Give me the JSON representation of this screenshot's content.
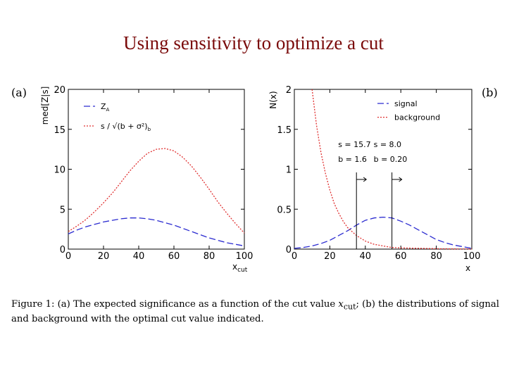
{
  "slide_title": "Using sensitivity to optimize a cut",
  "caption": {
    "prefix": "Figure 1: ",
    "part_a": "(a) The expected significance as a function of the cut value ",
    "var": "x",
    "var_sub": "cut",
    "part_b": "; (b) the distributions of signal and background with the optimal cut value indicated."
  },
  "chart_data": [
    {
      "panel": "(a)",
      "type": "line",
      "xlabel": "x",
      "xlabel_sub": "cut",
      "ylabel": "med[Z|s]",
      "xlim": [
        0,
        100
      ],
      "ylim": [
        0,
        20
      ],
      "xticks": [
        "0",
        "20",
        "40",
        "60",
        "80",
        "100"
      ],
      "yticks": [
        "0",
        "5",
        "10",
        "15",
        "20"
      ],
      "legend_position": "top-left",
      "legend": [
        "Z",
        "s / √(b + σ²)"
      ],
      "legend_subscripts": [
        "A",
        "b"
      ],
      "series": [
        {
          "color": "#2b2bd0",
          "style": "dashed",
          "x": [
            0,
            5,
            10,
            15,
            20,
            25,
            30,
            35,
            40,
            45,
            50,
            55,
            60,
            65,
            70,
            75,
            80,
            85,
            90,
            95,
            100
          ],
          "y": [
            1.9,
            2.4,
            2.8,
            3.1,
            3.4,
            3.6,
            3.8,
            3.9,
            3.9,
            3.8,
            3.6,
            3.3,
            3.0,
            2.6,
            2.2,
            1.8,
            1.4,
            1.1,
            0.8,
            0.6,
            0.4
          ]
        },
        {
          "color": "#e03030",
          "style": "dotted",
          "x": [
            0,
            5,
            10,
            15,
            20,
            25,
            30,
            35,
            40,
            45,
            50,
            55,
            60,
            65,
            70,
            75,
            80,
            85,
            90,
            95,
            100
          ],
          "y": [
            2.2,
            2.9,
            3.7,
            4.7,
            5.8,
            7.0,
            8.4,
            9.8,
            11.0,
            12.0,
            12.5,
            12.6,
            12.3,
            11.5,
            10.4,
            9.0,
            7.5,
            5.9,
            4.5,
            3.2,
            2.0
          ]
        }
      ]
    },
    {
      "panel": "(b)",
      "type": "line",
      "xlabel": "x",
      "ylabel": "N(x)",
      "xlim": [
        0,
        100
      ],
      "ylim": [
        0,
        2
      ],
      "xticks": [
        "0",
        "20",
        "40",
        "60",
        "80",
        "100"
      ],
      "yticks": [
        "0",
        "0.5",
        "1",
        "1.5",
        "2"
      ],
      "legend_position": "top-right",
      "legend": [
        "signal",
        "background"
      ],
      "series": [
        {
          "color": "#2b2bd0",
          "style": "dashed",
          "x": [
            0,
            5,
            10,
            15,
            20,
            25,
            30,
            35,
            40,
            45,
            50,
            55,
            60,
            65,
            70,
            75,
            80,
            85,
            90,
            95,
            100
          ],
          "y": [
            0.01,
            0.02,
            0.04,
            0.07,
            0.11,
            0.17,
            0.23,
            0.3,
            0.36,
            0.39,
            0.4,
            0.39,
            0.35,
            0.3,
            0.24,
            0.18,
            0.12,
            0.08,
            0.05,
            0.03,
            0.01
          ]
        },
        {
          "color": "#e03030",
          "style": "dotted",
          "x": [
            10,
            12.5,
            15,
            17.5,
            20,
            22.5,
            25,
            27.5,
            30,
            35,
            40,
            45,
            50,
            55,
            60,
            70,
            80,
            90,
            100
          ],
          "y": [
            2.0,
            1.55,
            1.21,
            0.95,
            0.74,
            0.57,
            0.45,
            0.35,
            0.27,
            0.17,
            0.1,
            0.06,
            0.04,
            0.02,
            0.015,
            0.01,
            0.005,
            0.003,
            0.002
          ]
        }
      ],
      "cuts": [
        {
          "x": 35,
          "label_s": "s = 15.7",
          "label_b": "b = 1.6"
        },
        {
          "x": 55,
          "label_s": "s = 8.0",
          "label_b": "b = 0.20"
        }
      ]
    }
  ]
}
